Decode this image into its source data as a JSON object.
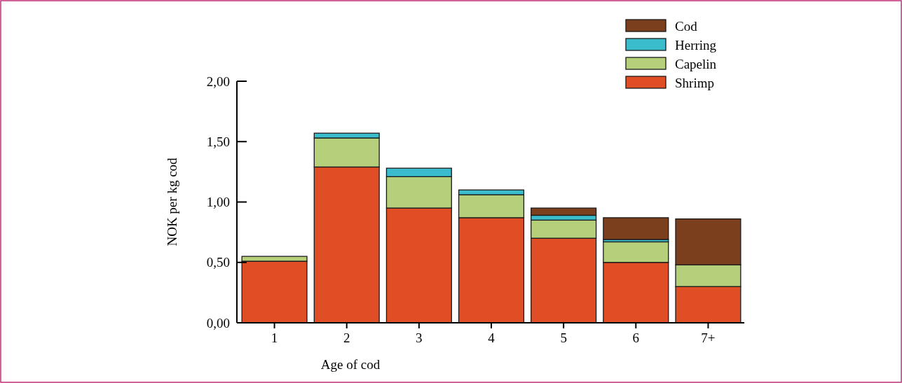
{
  "chart_data": {
    "type": "bar",
    "xlabel": "Age of cod",
    "ylabel": "NOK per kg cod",
    "categories": [
      "1",
      "2",
      "3",
      "4",
      "5",
      "6",
      "7+"
    ],
    "stacked": true,
    "legend": "top right",
    "ylim": [
      0,
      2
    ],
    "yticks": [
      {
        "value": 0,
        "label": "0,00"
      },
      {
        "value": 0.5,
        "label": "0,50"
      },
      {
        "value": 1,
        "label": "1,00"
      },
      {
        "value": 1.5,
        "label": "1,50"
      },
      {
        "value": 2,
        "label": "2,00"
      }
    ],
    "series": [
      {
        "name": "Shrimp",
        "color": "#e04e25",
        "values": [
          0.51,
          1.29,
          0.95,
          0.87,
          0.7,
          0.5,
          0.3
        ]
      },
      {
        "name": "Capelin",
        "color": "#b5cf7a",
        "values": [
          0.04,
          0.24,
          0.26,
          0.19,
          0.15,
          0.17,
          0.18
        ]
      },
      {
        "name": "Herring",
        "color": "#3bbccc",
        "values": [
          0,
          0.04,
          0.07,
          0.04,
          0.04,
          0.02,
          0
        ]
      },
      {
        "name": "Cod",
        "color": "#7b3f1e",
        "values": [
          0,
          0,
          0,
          0,
          0.06,
          0.18,
          0.38
        ]
      }
    ]
  }
}
